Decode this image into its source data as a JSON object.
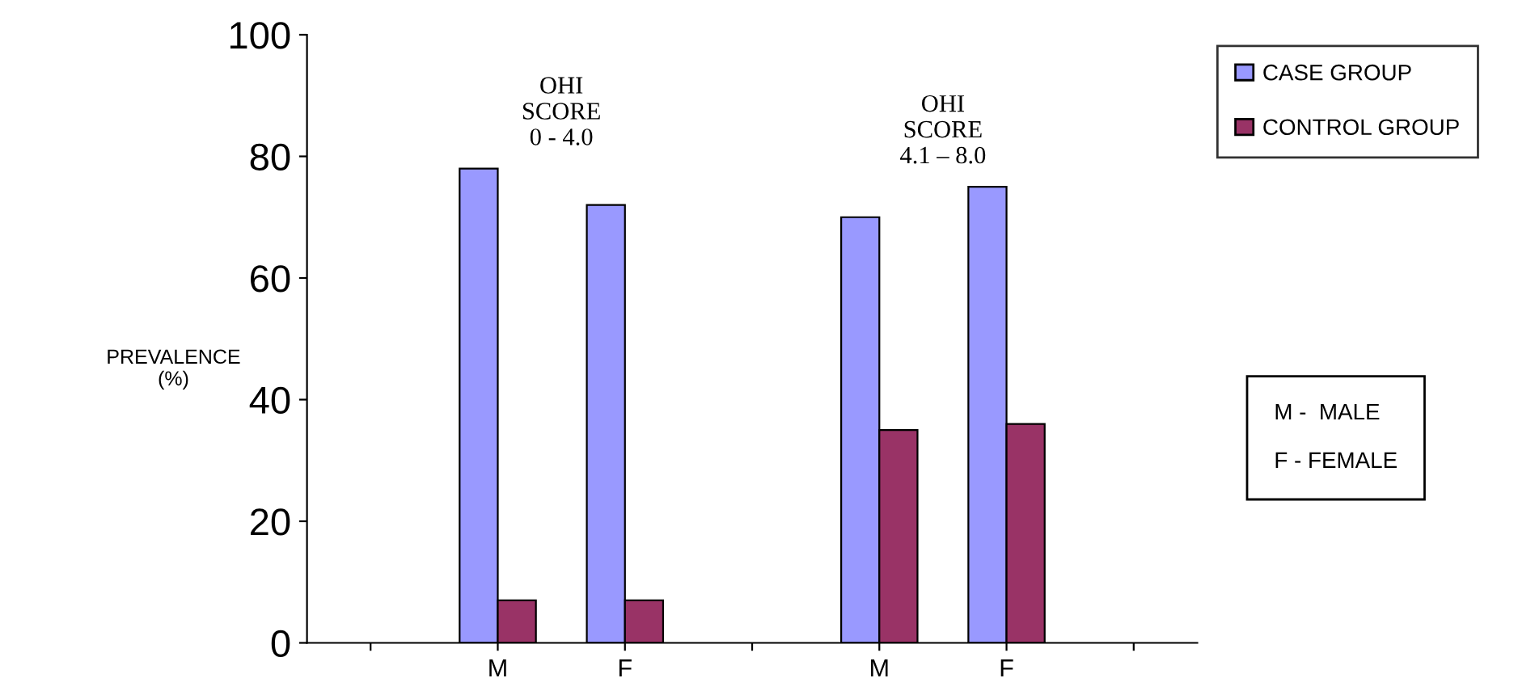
{
  "chart_data": {
    "type": "bar",
    "categories": [
      null,
      "M",
      "F",
      null,
      "M",
      "F",
      null
    ],
    "series": [
      {
        "name": "CASE GROUP",
        "color": "#9999ff",
        "values": [
          null,
          78,
          72,
          null,
          70,
          75,
          null
        ]
      },
      {
        "name": "CONTROL GROUP",
        "color": "#993366",
        "values": [
          null,
          7,
          7,
          null,
          35,
          36,
          null
        ]
      }
    ],
    "ylabel": "PREVALENCE\n(%)",
    "ylim": [
      0,
      100
    ],
    "yticks": [
      0,
      20,
      40,
      60,
      80,
      100
    ],
    "annotations": [
      "OHI\nSCORE\n0 - 4.0",
      "OHI\nSCORE\n4.1 – 8.0",
      "M -  MALE\n\nF - FEMALE"
    ],
    "legend": "right",
    "grid": false
  }
}
